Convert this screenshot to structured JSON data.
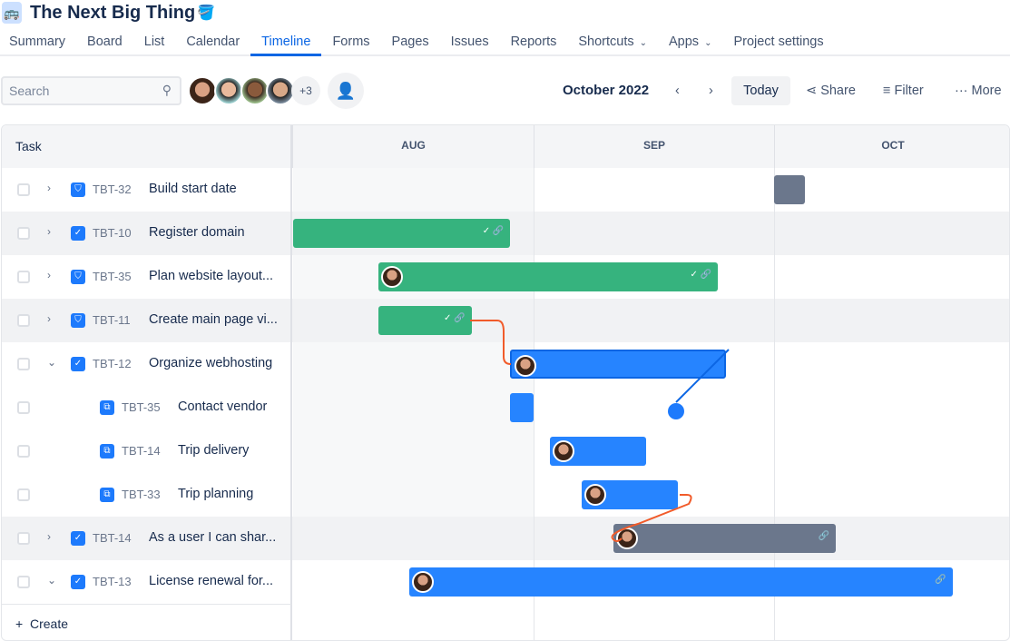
{
  "project": {
    "title": "The Next Big Thing",
    "logo_icon": "bus-icon",
    "theme_icon": "paint-bucket-icon"
  },
  "tabs": [
    {
      "label": "Summary"
    },
    {
      "label": "Board"
    },
    {
      "label": "List"
    },
    {
      "label": "Calendar"
    },
    {
      "label": "Timeline",
      "active": true
    },
    {
      "label": "Forms"
    },
    {
      "label": "Pages"
    },
    {
      "label": "Issues"
    },
    {
      "label": "Reports"
    },
    {
      "label": "Shortcuts",
      "dropdown": true
    },
    {
      "label": "Apps",
      "dropdown": true
    },
    {
      "label": "Project settings"
    }
  ],
  "toolbar": {
    "search_placeholder": "Search",
    "extra_members": "+3",
    "month": "October 2022",
    "today": "Today",
    "share": "Share",
    "filter": "Filter",
    "more": "More"
  },
  "grid": {
    "task_header": "Task",
    "months": [
      "AUG",
      "SEP",
      "OCT"
    ],
    "create": "Create"
  },
  "colors": {
    "done": "#36b37e",
    "in_progress": "#2684ff",
    "todo": "#6b778c",
    "dependency": "#f15b2a"
  },
  "rows": [
    {
      "key": "TBT-32",
      "summary": "Build start date",
      "type": "epic",
      "expand": "collapsed",
      "bar": {
        "start": "2022-10-01",
        "end": "2022-10-05",
        "status": "todo"
      }
    },
    {
      "key": "TBT-10",
      "summary": "Register domain",
      "type": "task",
      "expand": "collapsed",
      "bar": {
        "start": "2022-08-01",
        "end": "2022-08-29",
        "status": "done",
        "check": true,
        "link": true
      }
    },
    {
      "key": "TBT-35",
      "summary": "Plan website layout...",
      "type": "epic",
      "expand": "collapsed",
      "bar": {
        "start": "2022-08-12",
        "end": "2022-09-24",
        "status": "done",
        "avatar": true,
        "check": true,
        "link": true
      }
    },
    {
      "key": "TBT-11",
      "summary": "Create main page vi...",
      "type": "epic",
      "expand": "collapsed",
      "bar": {
        "start": "2022-08-12",
        "end": "2022-08-24",
        "status": "done",
        "check": true,
        "link": true
      }
    },
    {
      "key": "TBT-12",
      "summary": "Organize webhosting",
      "type": "task",
      "expand": "expanded",
      "bar": {
        "start": "2022-08-29",
        "end": "2022-09-25",
        "status": "in_progress",
        "avatar": true,
        "selected": true
      }
    },
    {
      "key": "TBT-35",
      "summary": "Contact vendor",
      "type": "subtask",
      "bar": {
        "start": "2022-08-29",
        "end": "2022-09-01",
        "status": "in_progress"
      }
    },
    {
      "key": "TBT-14",
      "summary": "Trip delivery",
      "type": "subtask",
      "bar": {
        "start": "2022-09-03",
        "end": "2022-09-15",
        "status": "in_progress",
        "avatar": true
      }
    },
    {
      "key": "TBT-33",
      "summary": "Trip planning",
      "type": "subtask",
      "bar": {
        "start": "2022-09-07",
        "end": "2022-09-19",
        "status": "in_progress",
        "avatar": true
      }
    },
    {
      "key": "TBT-14",
      "summary": "As a user I can shar...",
      "type": "task",
      "expand": "collapsed",
      "bar": {
        "start": "2022-09-11",
        "end": "2022-10-09",
        "status": "todo",
        "avatar": true,
        "link": true
      }
    },
    {
      "key": "TBT-13",
      "summary": "License renewal for...",
      "type": "task",
      "expand": "expanded",
      "bar": {
        "start": "2022-08-16",
        "end": "2022-10-24",
        "status": "in_progress",
        "avatar": true,
        "link": true
      }
    }
  ]
}
